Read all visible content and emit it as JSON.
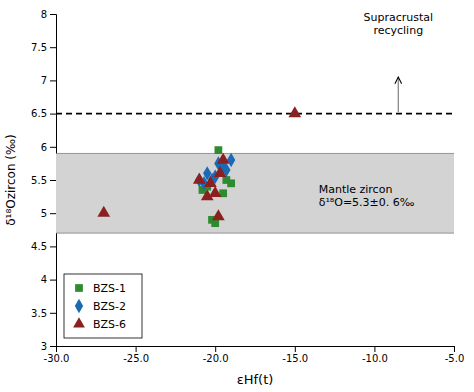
{
  "chart_data": {
    "type": "scatter",
    "x_label": "εHf(t)",
    "y_label": "δ¹⁸Ozircon (‰)",
    "series": [
      {
        "name": "BZS-1",
        "color": "#2e8b2e",
        "marker": "square",
        "x": [
          -20.5,
          -20.0,
          -19.5,
          -19.0,
          -20.2,
          -19.8,
          -20.8,
          -19.3
        ],
        "values": [
          5.4,
          4.85,
          5.3,
          5.45,
          4.9,
          5.95,
          5.35,
          5.5
        ]
      },
      {
        "name": "BZS-2",
        "color": "#1a6ab5",
        "marker": "diamond",
        "x": [
          -21.0,
          -20.5,
          -20.2,
          -19.8,
          -19.5,
          -20.7,
          -20.0,
          -19.3,
          -19.0
        ],
        "values": [
          5.5,
          5.6,
          5.5,
          5.75,
          5.7,
          5.45,
          5.55,
          5.65,
          5.8
        ]
      },
      {
        "name": "BZS-6",
        "color": "#8b2020",
        "marker": "triangle",
        "x": [
          -27.0,
          -21.0,
          -20.5,
          -20.0,
          -19.8,
          -19.5,
          -20.3,
          -19.7,
          -15.0
        ],
        "values": [
          5.0,
          5.5,
          5.25,
          5.3,
          4.95,
          5.8,
          5.45,
          5.6,
          6.5
        ]
      }
    ],
    "bands": [
      {
        "low": 4.7,
        "high": 5.9,
        "color": "#d3d3d3"
      }
    ],
    "lines": [
      {
        "y": 6.5,
        "line_style": "dashed"
      }
    ],
    "arrows": [
      {
        "x": -8.5,
        "y_start": 6.52,
        "y_end": 7.05
      }
    ],
    "annotations": [
      {
        "text": [
          "Supracrustal",
          "recycling"
        ],
        "x": -8.5,
        "y": 7.65
      },
      {
        "text": [
          "Mantle zircon",
          "δ¹⁸O=5.3±0. 6‰"
        ],
        "x": -13.5,
        "y": 5.27
      }
    ],
    "xlim": [
      -30.0,
      -5.0
    ],
    "ylim": [
      3.0,
      8.0
    ],
    "xticks": [
      {
        "value": -30,
        "label": "-30.0"
      },
      {
        "value": -25,
        "label": "-25.0"
      },
      {
        "value": -20,
        "label": "-20.0"
      },
      {
        "value": -15,
        "label": "-15.0"
      },
      {
        "value": -10,
        "label": "-10.0"
      },
      {
        "value": -5,
        "label": "-5.0"
      }
    ],
    "yticks": [
      3,
      3.5,
      4,
      4.5,
      5,
      5.5,
      6,
      6.5,
      7,
      7.5,
      8
    ],
    "grid": false,
    "legend": "lower left"
  }
}
